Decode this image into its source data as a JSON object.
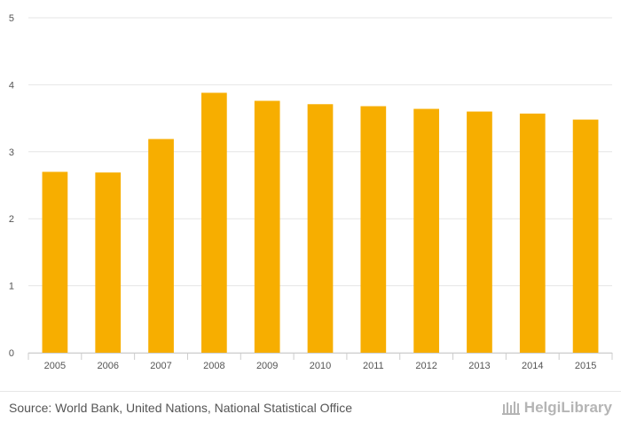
{
  "chart_data": {
    "type": "bar",
    "title": "",
    "xlabel": "",
    "ylabel": "",
    "categories": [
      "2005",
      "2006",
      "2007",
      "2008",
      "2009",
      "2010",
      "2011",
      "2012",
      "2013",
      "2014",
      "2015"
    ],
    "values": [
      2.7,
      2.69,
      3.19,
      3.88,
      3.76,
      3.71,
      3.68,
      3.64,
      3.6,
      3.57,
      3.48
    ],
    "ylim": [
      0,
      5
    ],
    "yticks": [
      "0",
      "1",
      "2",
      "3",
      "4",
      "5"
    ],
    "grid": true,
    "bar_color": "#f7ae00"
  },
  "footer": {
    "source": "Source: World Bank, United Nations, National Statistical Office",
    "logo_text": "HelgiLibrary"
  },
  "colors": {
    "grid": "#e6e6e6",
    "tick_label": "#555555",
    "logo": "#b5b5b5"
  }
}
